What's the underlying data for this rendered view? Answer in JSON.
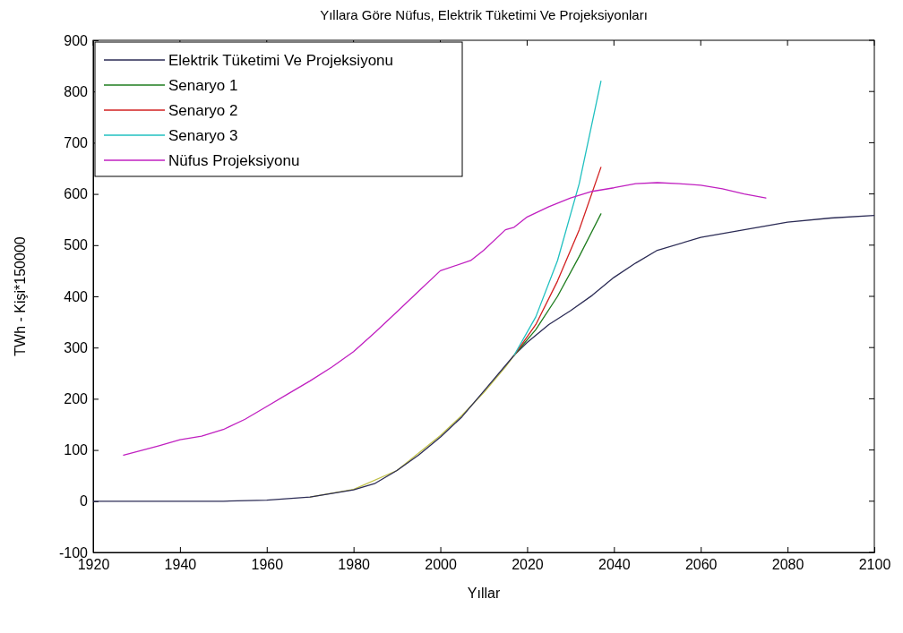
{
  "chart_data": {
    "type": "line",
    "title": "Yıllara Göre Nüfus, Elektrik Tüketimi Ve Projeksiyonları",
    "xlabel": "Yıllar",
    "ylabel": "TWh - Kişi*150000",
    "xlim": [
      1920,
      2100
    ],
    "xticks": [
      1920,
      1940,
      1960,
      1980,
      2000,
      2020,
      2040,
      2060,
      2080,
      2100
    ],
    "ylim": [
      -100,
      900
    ],
    "yticks": [
      -100,
      0,
      100,
      200,
      300,
      400,
      500,
      600,
      700,
      800,
      900
    ],
    "grid": false,
    "legend": "top left",
    "marker": "none",
    "line_style": "solid",
    "series": [
      {
        "color": "#c0c048",
        "x": [
          1970,
          1980,
          1990,
          2000,
          2005,
          2010,
          2015,
          2017
        ],
        "values": [
          8,
          23,
          60,
          128,
          168,
          212,
          262,
          285
        ]
      },
      {
        "name": "Elektrik Tüketimi Ve Projeksiyonu",
        "color": "#2b2b55",
        "x": [
          1920,
          1950,
          1960,
          1970,
          1980,
          1985,
          1990,
          1995,
          2000,
          2005,
          2010,
          2015,
          2017,
          2020,
          2025,
          2030,
          2035,
          2040,
          2045,
          2050,
          2060,
          2070,
          2080,
          2090,
          2100
        ],
        "values": [
          0,
          0,
          2,
          8,
          22,
          35,
          60,
          90,
          125,
          165,
          215,
          265,
          285,
          310,
          345,
          372,
          402,
          437,
          465,
          490,
          515,
          530,
          545,
          553,
          558
        ]
      },
      {
        "name": "Senaryo 1",
        "color": "#1e7d1e",
        "x": [
          2017,
          2022,
          2027,
          2032,
          2037
        ],
        "values": [
          285,
          335,
          400,
          478,
          561
        ]
      },
      {
        "name": "Senaryo 2",
        "color": "#d22020",
        "x": [
          2017,
          2022,
          2027,
          2032,
          2037
        ],
        "values": [
          285,
          345,
          430,
          530,
          652
        ]
      },
      {
        "name": "Senaryo 3",
        "color": "#20c0c0",
        "x": [
          2017,
          2022,
          2027,
          2032,
          2037
        ],
        "values": [
          285,
          360,
          470,
          620,
          820
        ]
      },
      {
        "name": "Nüfus Projeksiyonu",
        "color": "#c020c0",
        "x": [
          1927,
          1935,
          1940,
          1945,
          1950,
          1955,
          1960,
          1965,
          1970,
          1975,
          1980,
          1985,
          1990,
          1995,
          2000,
          2007,
          2010,
          2015,
          2017,
          2020,
          2025,
          2030,
          2035,
          2040,
          2045,
          2050,
          2055,
          2060,
          2065,
          2070,
          2075
        ],
        "values": [
          90,
          108,
          120,
          127,
          140,
          160,
          185,
          210,
          235,
          262,
          292,
          330,
          370,
          410,
          450,
          470,
          490,
          530,
          535,
          555,
          575,
          592,
          605,
          612,
          620,
          622,
          620,
          617,
          610,
          600,
          592
        ]
      }
    ]
  }
}
